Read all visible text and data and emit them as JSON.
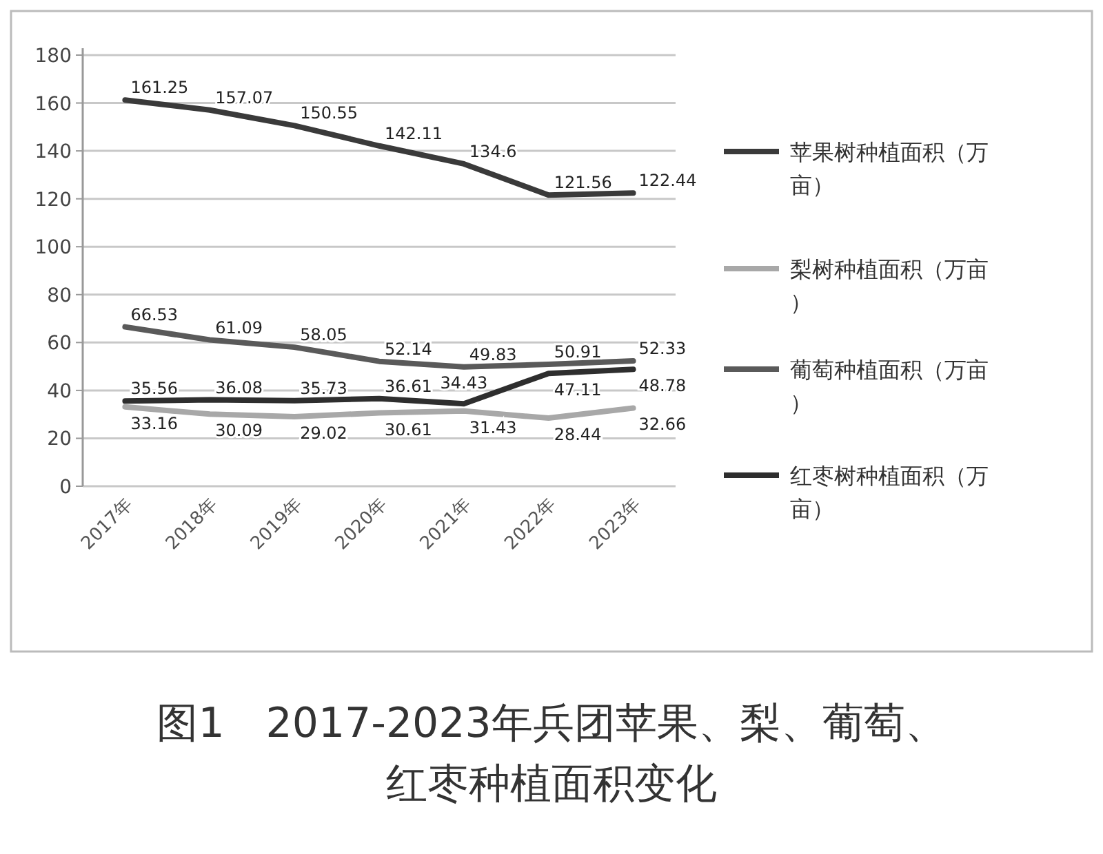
{
  "chart_data": {
    "type": "line",
    "title": "图1　2017-2023年兵团苹果、梨、葡萄、红枣种植面积变化",
    "categories": [
      "2017年",
      "2018年",
      "2019年",
      "2020年",
      "2021年",
      "2022年",
      "2023年"
    ],
    "series": [
      {
        "name": "苹果树种植面积（万亩）",
        "color": "#3a3a3a",
        "values": [
          161.25,
          157.07,
          150.55,
          142.11,
          134.6,
          121.56,
          122.44
        ]
      },
      {
        "name": "梨树种植面积（万亩）",
        "color": "#a8a8a8",
        "values": [
          33.16,
          30.09,
          29.02,
          30.61,
          31.43,
          28.44,
          32.66
        ]
      },
      {
        "name": "葡萄种植面积（万亩）",
        "color": "#5a5a5a",
        "values": [
          66.53,
          61.09,
          58.05,
          52.14,
          49.83,
          50.91,
          52.33
        ]
      },
      {
        "name": "红枣树种植面积（万亩）",
        "color": "#2e2e2e",
        "values": [
          35.56,
          36.08,
          35.73,
          36.61,
          34.43,
          47.11,
          48.78
        ]
      }
    ],
    "ylim": [
      0,
      180
    ],
    "yticks": [
      0,
      20,
      40,
      60,
      80,
      100,
      120,
      140,
      160,
      180
    ],
    "grid": "y",
    "legend": "right",
    "data_labels": true,
    "marker": "none",
    "line_style": "solid"
  }
}
